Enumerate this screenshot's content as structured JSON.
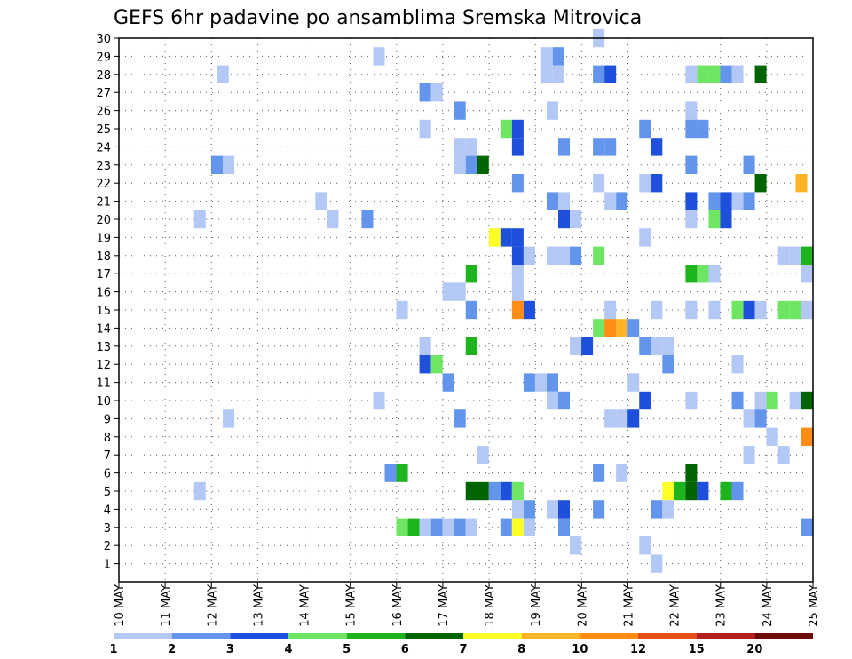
{
  "chart_data": {
    "type": "heatmap",
    "title": "GEFS 6hr padavine po ansamblima Sremska Mitrovica",
    "x_tick_labels": [
      "10 MAY",
      "11 MAY",
      "12 MAY",
      "13 MAY",
      "14 MAY",
      "15 MAY",
      "16 MAY",
      "17 MAY",
      "18 MAY",
      "19 MAY",
      "20 MAY",
      "21 MAY",
      "22 MAY",
      "23 MAY",
      "24 MAY",
      "25 MAY"
    ],
    "xlim": [
      0,
      15
    ],
    "y_tick_labels": [
      "1",
      "2",
      "3",
      "4",
      "5",
      "6",
      "7",
      "8",
      "9",
      "10",
      "11",
      "12",
      "13",
      "14",
      "15",
      "16",
      "17",
      "18",
      "19",
      "20",
      "21",
      "22",
      "23",
      "24",
      "25",
      "26",
      "27",
      "28",
      "29",
      "30"
    ],
    "ylim": [
      0,
      30
    ],
    "grid": true,
    "colorbar": {
      "labels": [
        "1",
        "2",
        "3",
        "4",
        "5",
        "6",
        "7",
        "8",
        "10",
        "12",
        "15",
        "20"
      ],
      "colors": [
        "#b4c8f5",
        "#6495ed",
        "#1e50dc",
        "#6ee664",
        "#1eb41e",
        "#006400",
        "#ffff28",
        "#ffb428",
        "#ff8c14",
        "#e65014",
        "#b41e1e",
        "#6e0a0a"
      ]
    },
    "cells": [
      [
        10.37,
        30,
        1
      ],
      [
        5.62,
        29,
        1
      ],
      [
        9.25,
        29,
        1
      ],
      [
        9.5,
        29,
        2
      ],
      [
        2.25,
        28,
        1
      ],
      [
        9.25,
        28,
        1
      ],
      [
        9.5,
        28,
        1
      ],
      [
        10.37,
        28,
        2
      ],
      [
        10.62,
        28,
        3
      ],
      [
        12.37,
        28,
        1
      ],
      [
        12.62,
        28,
        4
      ],
      [
        12.87,
        28,
        4
      ],
      [
        13.12,
        28,
        2
      ],
      [
        13.37,
        28,
        1
      ],
      [
        13.87,
        28,
        6
      ],
      [
        6.62,
        27,
        2
      ],
      [
        6.87,
        27,
        1
      ],
      [
        7.37,
        26,
        2
      ],
      [
        9.37,
        26,
        1
      ],
      [
        12.37,
        26,
        1
      ],
      [
        6.62,
        25,
        1
      ],
      [
        8.37,
        25,
        4
      ],
      [
        8.62,
        25,
        3
      ],
      [
        11.37,
        25,
        2
      ],
      [
        12.37,
        25,
        2
      ],
      [
        12.62,
        25,
        2
      ],
      [
        7.37,
        24,
        1
      ],
      [
        7.62,
        24,
        1
      ],
      [
        8.62,
        24,
        3
      ],
      [
        9.62,
        24,
        2
      ],
      [
        10.37,
        24,
        2
      ],
      [
        10.62,
        24,
        2
      ],
      [
        11.62,
        24,
        3
      ],
      [
        2.12,
        23,
        2
      ],
      [
        2.37,
        23,
        1
      ],
      [
        7.37,
        23,
        1
      ],
      [
        7.62,
        23,
        2
      ],
      [
        7.87,
        23,
        6
      ],
      [
        12.37,
        23,
        2
      ],
      [
        13.62,
        23,
        2
      ],
      [
        8.62,
        22,
        2
      ],
      [
        10.37,
        22,
        1
      ],
      [
        11.37,
        22,
        1
      ],
      [
        11.62,
        22,
        3
      ],
      [
        13.87,
        22,
        6
      ],
      [
        14.75,
        22,
        8
      ],
      [
        4.37,
        21,
        1
      ],
      [
        9.37,
        21,
        2
      ],
      [
        9.62,
        21,
        1
      ],
      [
        10.62,
        21,
        1
      ],
      [
        10.87,
        21,
        2
      ],
      [
        12.37,
        21,
        3
      ],
      [
        12.87,
        21,
        2
      ],
      [
        13.12,
        21,
        3
      ],
      [
        13.37,
        21,
        1
      ],
      [
        13.62,
        21,
        2
      ],
      [
        1.75,
        20,
        1
      ],
      [
        4.62,
        20,
        1
      ],
      [
        5.37,
        20,
        2
      ],
      [
        9.62,
        20,
        3
      ],
      [
        9.87,
        20,
        1
      ],
      [
        12.37,
        20,
        1
      ],
      [
        12.87,
        20,
        4
      ],
      [
        13.12,
        20,
        3
      ],
      [
        8.12,
        19,
        7
      ],
      [
        8.37,
        19,
        3
      ],
      [
        8.62,
        19,
        3
      ],
      [
        11.37,
        19,
        1
      ],
      [
        8.62,
        18,
        3
      ],
      [
        8.87,
        18,
        1
      ],
      [
        9.37,
        18,
        1
      ],
      [
        9.62,
        18,
        1
      ],
      [
        9.87,
        18,
        2
      ],
      [
        10.37,
        18,
        4
      ],
      [
        14.37,
        18,
        1
      ],
      [
        14.62,
        18,
        1
      ],
      [
        14.87,
        18,
        1
      ],
      [
        15,
        18,
        5
      ],
      [
        7.62,
        17,
        5
      ],
      [
        8.62,
        17,
        1
      ],
      [
        12.37,
        17,
        5
      ],
      [
        12.62,
        17,
        4
      ],
      [
        12.87,
        17,
        1
      ],
      [
        15,
        17,
        1
      ],
      [
        7.12,
        16,
        1
      ],
      [
        7.37,
        16,
        1
      ],
      [
        8.62,
        16,
        1
      ],
      [
        6.12,
        15,
        1
      ],
      [
        7.62,
        15,
        2
      ],
      [
        8.62,
        15,
        9
      ],
      [
        8.87,
        15,
        3
      ],
      [
        10.62,
        15,
        1
      ],
      [
        11.62,
        15,
        1
      ],
      [
        12.37,
        15,
        1
      ],
      [
        12.87,
        15,
        1
      ],
      [
        13.37,
        15,
        4
      ],
      [
        13.62,
        15,
        3
      ],
      [
        13.87,
        15,
        1
      ],
      [
        14.37,
        15,
        4
      ],
      [
        14.62,
        15,
        4
      ],
      [
        15,
        15,
        1
      ],
      [
        10.37,
        14,
        4
      ],
      [
        10.62,
        14,
        9
      ],
      [
        10.87,
        14,
        8
      ],
      [
        11.12,
        14,
        2
      ],
      [
        6.62,
        13,
        1
      ],
      [
        7.62,
        13,
        5
      ],
      [
        9.87,
        13,
        1
      ],
      [
        10.12,
        13,
        3
      ],
      [
        11.37,
        13,
        2
      ],
      [
        11.62,
        13,
        1
      ],
      [
        11.87,
        13,
        1
      ],
      [
        6.62,
        12,
        3
      ],
      [
        6.87,
        12,
        4
      ],
      [
        11.87,
        12,
        2
      ],
      [
        13.37,
        12,
        1
      ],
      [
        7.12,
        11,
        2
      ],
      [
        8.87,
        11,
        2
      ],
      [
        9.12,
        11,
        1
      ],
      [
        9.37,
        11,
        2
      ],
      [
        11.12,
        11,
        1
      ],
      [
        5.62,
        10,
        1
      ],
      [
        9.37,
        10,
        1
      ],
      [
        9.62,
        10,
        2
      ],
      [
        11.37,
        10,
        3
      ],
      [
        12.37,
        10,
        1
      ],
      [
        13.37,
        10,
        2
      ],
      [
        13.87,
        10,
        1
      ],
      [
        14.12,
        10,
        4
      ],
      [
        14.62,
        10,
        1
      ],
      [
        14.87,
        10,
        6
      ],
      [
        2.37,
        9,
        1
      ],
      [
        7.37,
        9,
        2
      ],
      [
        10.62,
        9,
        1
      ],
      [
        10.87,
        9,
        1
      ],
      [
        11.12,
        9,
        3
      ],
      [
        13.62,
        9,
        1
      ],
      [
        13.87,
        9,
        2
      ],
      [
        14.12,
        8,
        1
      ],
      [
        15,
        8,
        9
      ],
      [
        7.87,
        7,
        1
      ],
      [
        13.62,
        7,
        1
      ],
      [
        14.37,
        7,
        1
      ],
      [
        5.87,
        6,
        2
      ],
      [
        6.12,
        6,
        5
      ],
      [
        10.37,
        6,
        2
      ],
      [
        10.87,
        6,
        1
      ],
      [
        12.37,
        6,
        6
      ],
      [
        1.75,
        5,
        1
      ],
      [
        7.62,
        5,
        6
      ],
      [
        7.87,
        5,
        6
      ],
      [
        8.12,
        5,
        2
      ],
      [
        8.37,
        5,
        3
      ],
      [
        8.62,
        5,
        4
      ],
      [
        11.87,
        5,
        7
      ],
      [
        12.12,
        5,
        5
      ],
      [
        12.37,
        5,
        6
      ],
      [
        12.62,
        5,
        3
      ],
      [
        13.12,
        5,
        5
      ],
      [
        13.37,
        5,
        2
      ],
      [
        8.62,
        4,
        1
      ],
      [
        8.87,
        4,
        2
      ],
      [
        9.37,
        4,
        1
      ],
      [
        9.62,
        4,
        3
      ],
      [
        10.37,
        4,
        2
      ],
      [
        11.62,
        4,
        2
      ],
      [
        11.87,
        4,
        1
      ],
      [
        6.12,
        3,
        4
      ],
      [
        6.37,
        3,
        5
      ],
      [
        6.62,
        3,
        1
      ],
      [
        6.87,
        3,
        2
      ],
      [
        7.12,
        3,
        1
      ],
      [
        7.37,
        3,
        2
      ],
      [
        7.62,
        3,
        1
      ],
      [
        8.37,
        3,
        2
      ],
      [
        8.62,
        3,
        7
      ],
      [
        8.87,
        3,
        1
      ],
      [
        9.62,
        3,
        2
      ],
      [
        15,
        3,
        2
      ],
      [
        9.87,
        2,
        1
      ],
      [
        11.37,
        2,
        1
      ],
      [
        11.62,
        1,
        1
      ]
    ]
  }
}
